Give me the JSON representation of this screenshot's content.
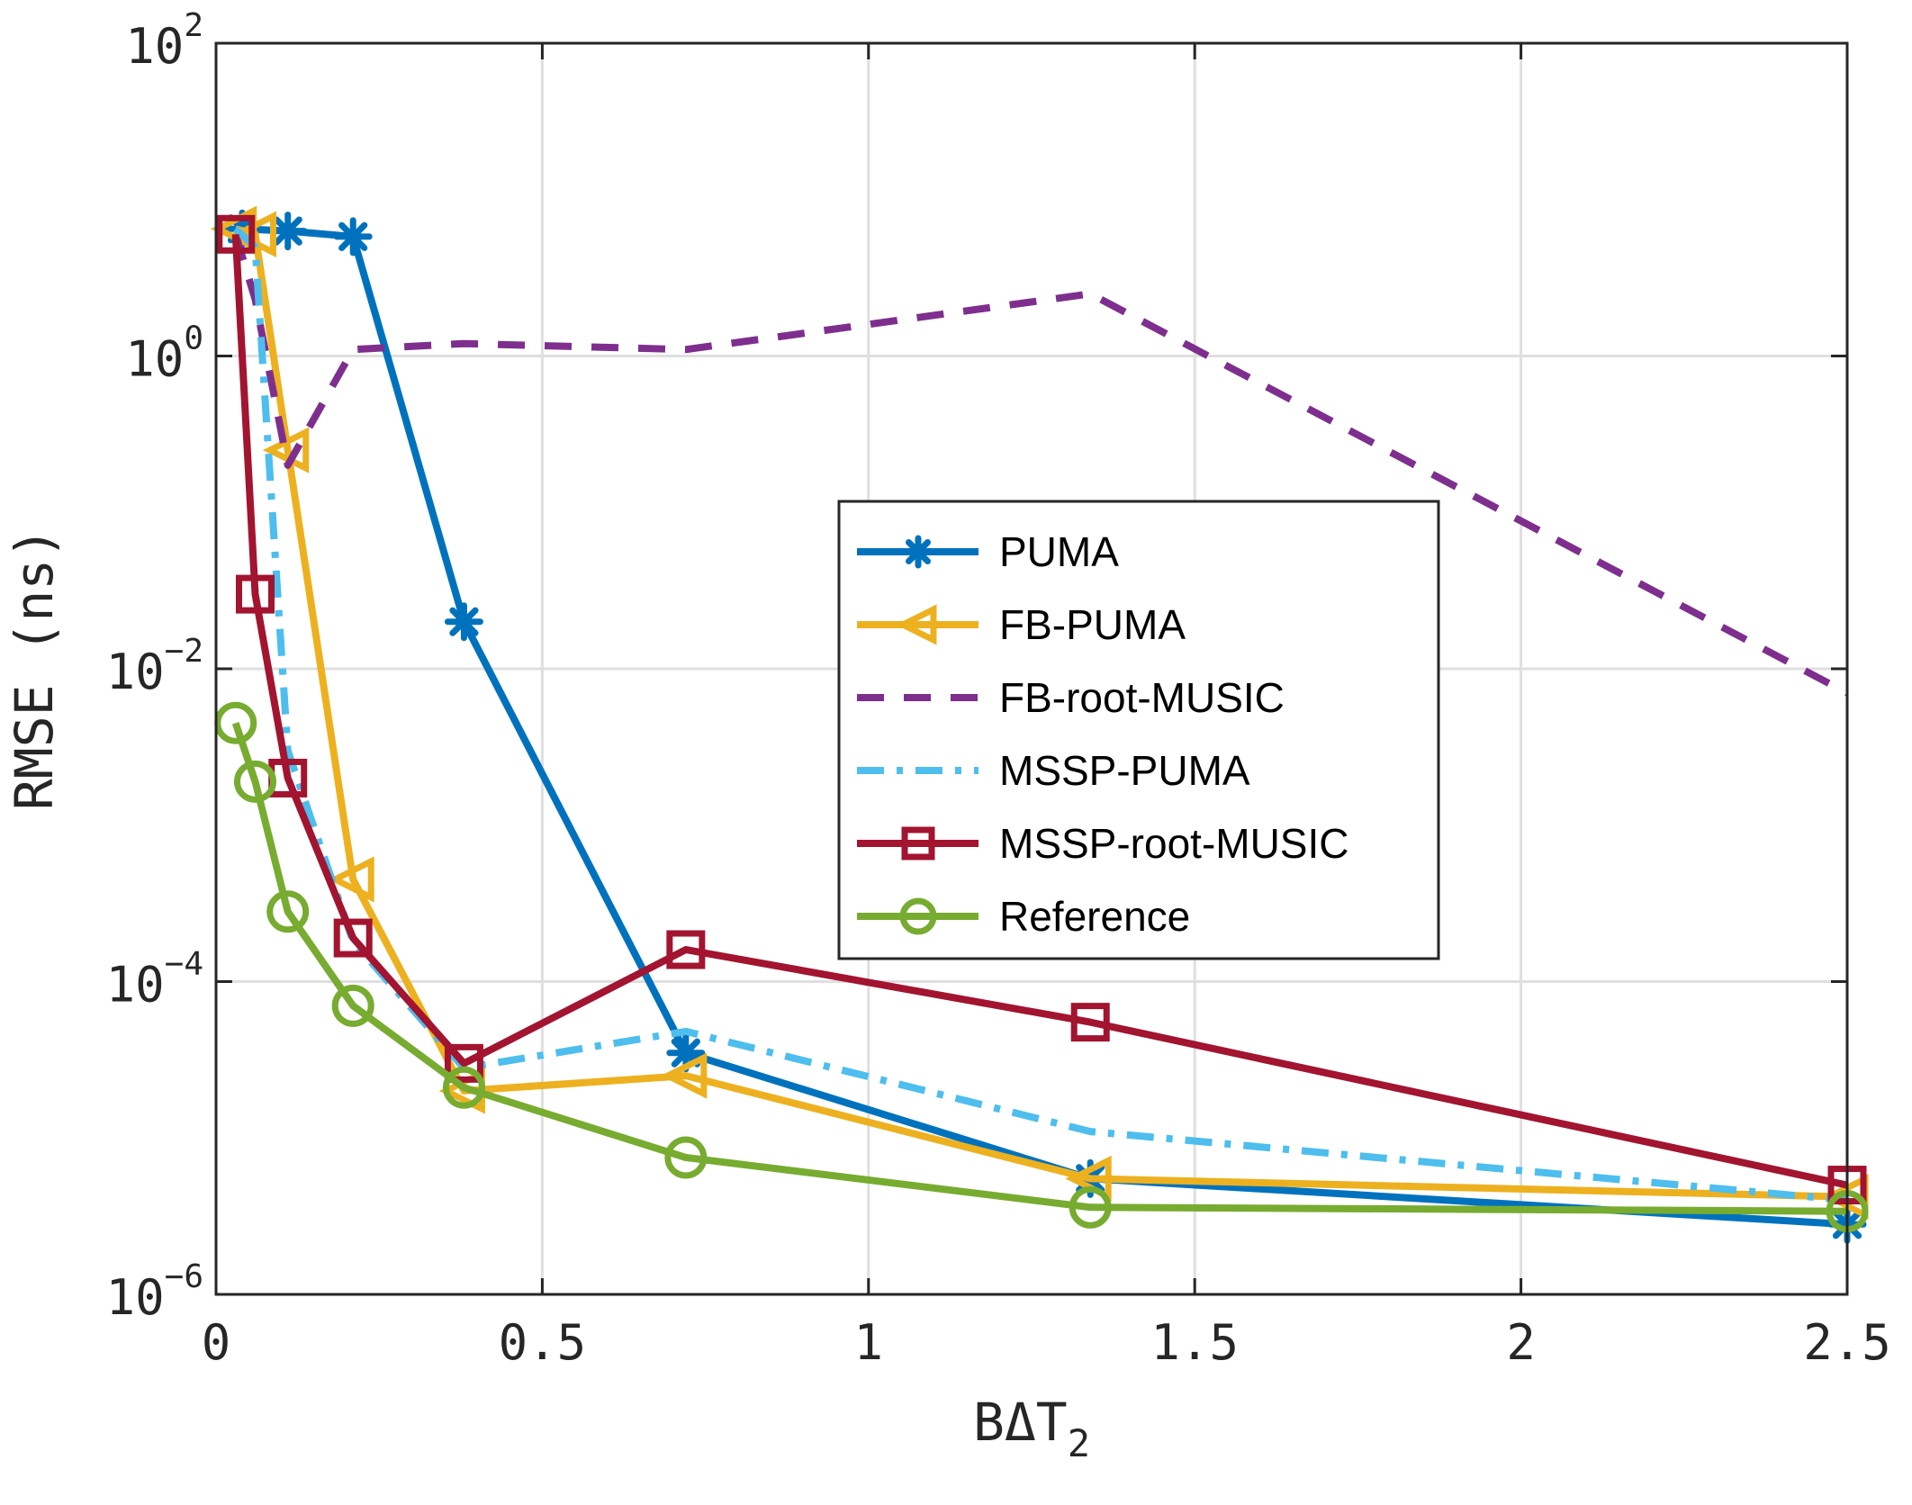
{
  "chart_data": {
    "type": "line",
    "xlabel": "BΔT",
    "xlabel_subscript": "2",
    "ylabel": "RMSE (ns)",
    "yscale": "log",
    "xlim": [
      0,
      2.5
    ],
    "ylim": [
      1e-06,
      100
    ],
    "xticks": [
      0,
      0.5,
      1,
      1.5,
      2,
      2.5
    ],
    "xtick_labels": [
      "0",
      "0.5",
      "1",
      "1.5",
      "2",
      "2.5"
    ],
    "yticks": [
      1e-06,
      0.0001,
      0.01,
      1,
      100
    ],
    "ytick_base": "10",
    "ytick_exponents": [
      "−6",
      "−4",
      "−2",
      "0",
      "2"
    ],
    "grid": true,
    "legend_position": "center-right",
    "series": [
      {
        "name": "PUMA",
        "color": "#0072BD",
        "style": "solid",
        "marker": "asterisk",
        "x": [
          0.04,
          0.11,
          0.21,
          0.38,
          0.72,
          1.34,
          2.5
        ],
        "y": [
          6.5,
          6.3,
          5.8,
          0.02,
          3.5e-05,
          5.5e-06,
          2.8e-06
        ]
      },
      {
        "name": "FB-PUMA",
        "color": "#EDB120",
        "style": "solid",
        "marker": "triangle-left",
        "x": [
          0.03,
          0.06,
          0.11,
          0.21,
          0.38,
          0.72,
          1.34,
          2.5
        ],
        "y": [
          6.5,
          6.0,
          0.25,
          0.00045,
          2e-05,
          2.5e-05,
          5.5e-06,
          4.2e-06
        ]
      },
      {
        "name": "FB-root-MUSIC",
        "color": "#7E2F8E",
        "style": "dashed",
        "marker": "none",
        "x": [
          0.03,
          0.06,
          0.11,
          0.21,
          0.38,
          0.72,
          1.34,
          2.5
        ],
        "y": [
          6.0,
          2.3,
          0.2,
          1.1,
          1.2,
          1.1,
          2.5,
          0.007
        ]
      },
      {
        "name": "MSSP-PUMA",
        "color": "#4DBEEE",
        "style": "dashdot",
        "marker": "none",
        "x": [
          0.03,
          0.06,
          0.11,
          0.21,
          0.38,
          0.72,
          1.34,
          2.5
        ],
        "y": [
          6.5,
          5.0,
          0.003,
          0.00018,
          2.8e-05,
          4.8e-05,
          1.1e-05,
          4e-06
        ]
      },
      {
        "name": "MSSP-root-MUSIC",
        "color": "#A2142F",
        "style": "solid",
        "marker": "square",
        "x": [
          0.03,
          0.06,
          0.11,
          0.21,
          0.38,
          0.72,
          1.34,
          2.5
        ],
        "y": [
          6.0,
          0.03,
          0.002,
          0.00019,
          3e-05,
          0.00016,
          5.5e-05,
          5e-06
        ]
      },
      {
        "name": "Reference",
        "color": "#77AC30",
        "style": "solid",
        "marker": "circle",
        "x": [
          0.03,
          0.06,
          0.11,
          0.21,
          0.38,
          0.72,
          1.34,
          2.5
        ],
        "y": [
          0.0045,
          0.0019,
          0.00028,
          7e-05,
          2.1e-05,
          7.5e-06,
          3.6e-06,
          3.4e-06
        ]
      }
    ]
  }
}
